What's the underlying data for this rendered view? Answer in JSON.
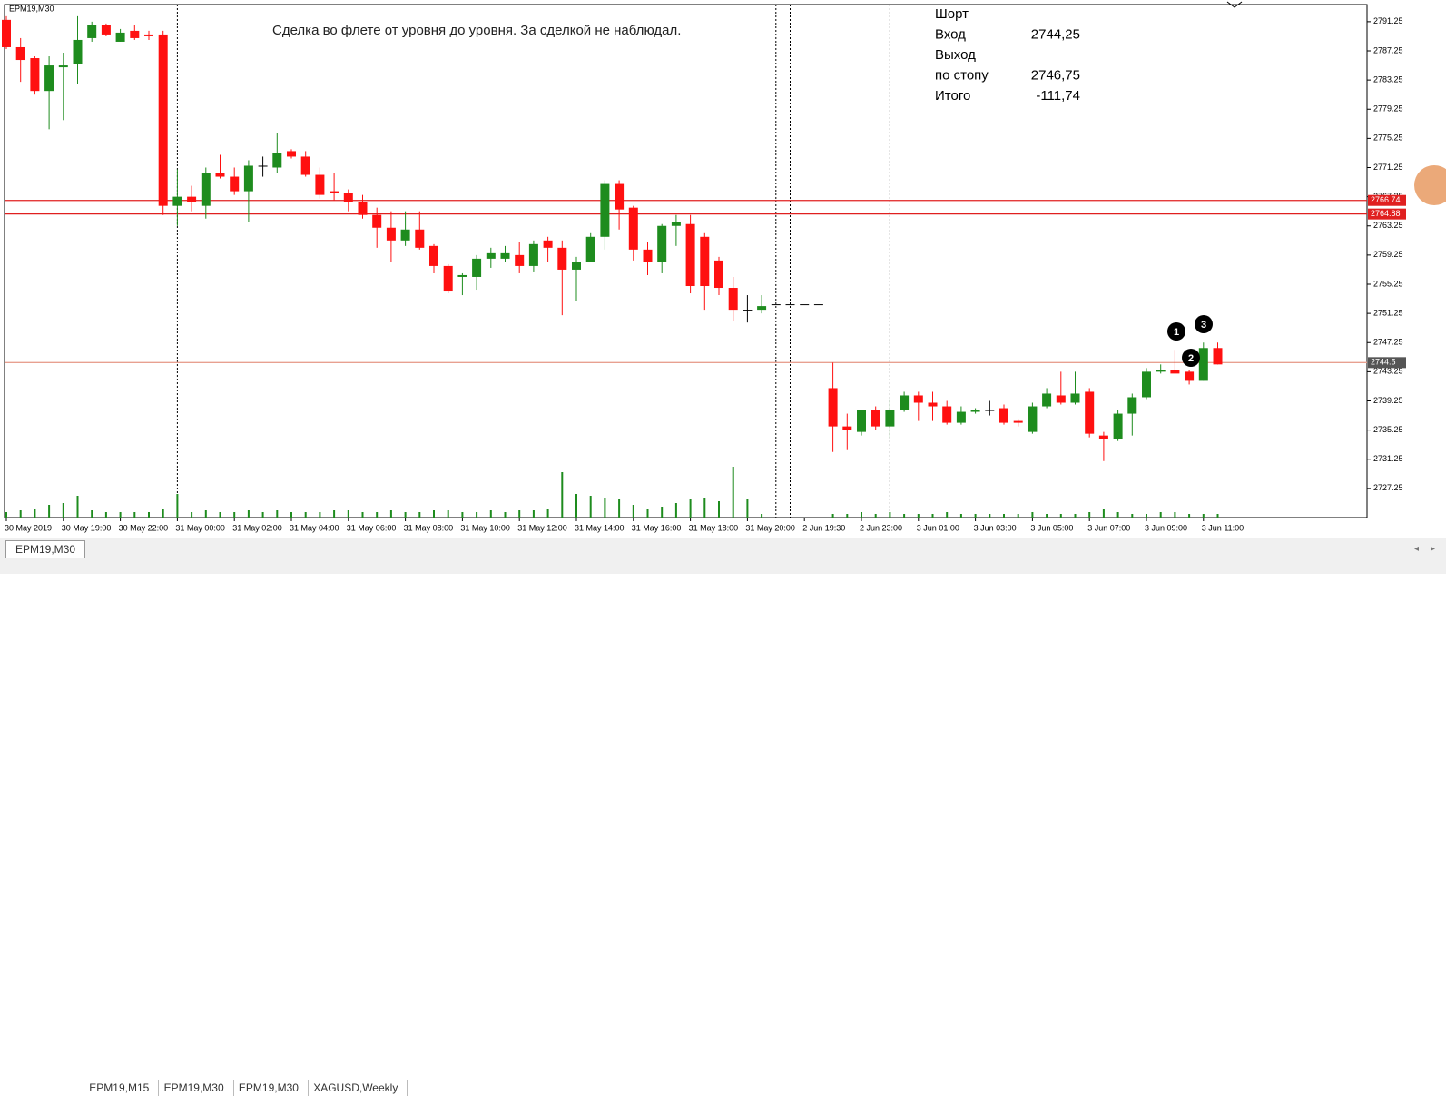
{
  "symbol_label": "EPM19,M30",
  "chart_data": {
    "type": "candlestick",
    "categories": [
      "30 May 2019",
      null,
      null,
      null,
      "30 May 19:00",
      null,
      null,
      null,
      "30 May 22:00",
      null,
      null,
      null,
      "31 May 00:00",
      null,
      null,
      null,
      "31 May 02:00",
      null,
      null,
      null,
      "31 May 04:00",
      null,
      null,
      null,
      "31 May 06:00",
      null,
      null,
      null,
      "31 May 08:00",
      null,
      null,
      null,
      "31 May 10:00",
      null,
      null,
      null,
      "31 May 12:00",
      null,
      null,
      null,
      "31 May 14:00",
      null,
      null,
      null,
      "31 May 16:00",
      null,
      null,
      null,
      "31 May 18:00",
      null,
      null,
      null,
      "31 May 20:00",
      null,
      null,
      null,
      "2 Jun 19:30",
      null,
      null,
      null,
      "2 Jun 23:00",
      null,
      null,
      null,
      "3 Jun 01:00",
      null,
      null,
      null,
      "3 Jun 03:00",
      null,
      null,
      null,
      "3 Jun 05:00",
      null,
      null,
      null,
      "3 Jun 07:00",
      null,
      null,
      null,
      "3 Jun 09:00",
      null,
      null,
      null,
      "3 Jun 11:00",
      null
    ],
    "open": [
      2791.5,
      2787.75,
      2786.25,
      2781.75,
      2785,
      2785.5,
      2789,
      2790.75,
      2788.5,
      2790,
      2789.5,
      2789.5,
      2766,
      2767.25,
      2766,
      2770.5,
      2770,
      2768,
      2771.5,
      2771.25,
      2773.5,
      2772.75,
      2770.25,
      2768,
      2767.75,
      2766.5,
      2764.75,
      2763,
      2761.25,
      2762.75,
      2760.5,
      2757.75,
      2756.25,
      2756.25,
      2758.75,
      2758.75,
      2759.25,
      2757.75,
      2761.25,
      2760.25,
      2757.25,
      2758.25,
      2761.75,
      2769,
      2765.75,
      2760,
      2758.25,
      2763.25,
      2763.5,
      2761.75,
      2758.5,
      2754.75,
      2751.75,
      2751.75,
      2752.5,
      2752.5,
      2752.5,
      2752.5,
      2741,
      2735.75,
      2735,
      2738,
      2735.75,
      2738,
      2740,
      2739,
      2738.5,
      2736.25,
      2737.75,
      2738,
      2738.25,
      2736.5,
      2735,
      2738.5,
      2740,
      2739,
      2740.5,
      2734.5,
      2734,
      2737.5,
      2739.75,
      2743.25,
      2743.5,
      2743.25,
      2742,
      2746.5
    ],
    "high": [
      2792,
      2789,
      2786.5,
      2786.5,
      2787,
      2792,
      2791.25,
      2791,
      2790.25,
      2790.75,
      2790,
      2790,
      2771,
      2768.75,
      2771.25,
      2773,
      2771.25,
      2772.25,
      2772.75,
      2776,
      2773.75,
      2773.5,
      2771.25,
      2770.5,
      2768.25,
      2767.5,
      2765.75,
      2765.25,
      2765.25,
      2765.25,
      2760.75,
      2758,
      2756.75,
      2759.25,
      2760.25,
      2760.5,
      2761,
      2761.25,
      2761.75,
      2761.25,
      2759,
      2762.25,
      2769.5,
      2769.5,
      2766,
      2761,
      2763.5,
      2764.75,
      2764.75,
      2762.25,
      2759,
      2756.25,
      2753.75,
      2753.75,
      2752.5,
      2752.5,
      2752.5,
      2752.5,
      2744.5,
      2737.5,
      2738,
      2738.5,
      2739.5,
      2740.5,
      2740.5,
      2740.5,
      2739.25,
      2738.5,
      2738.25,
      2739.25,
      2738.75,
      2736.75,
      2739,
      2741,
      2743.25,
      2743.25,
      2741,
      2735,
      2738,
      2740.25,
      2743.75,
      2744.25,
      2746.25,
      2743.5,
      2747.25,
      2747.25
    ],
    "low": [
      2787.5,
      2783,
      2781.25,
      2776.5,
      2777.75,
      2782.75,
      2788.5,
      2789.25,
      2788.5,
      2788.75,
      2788.75,
      2764.75,
      2763.25,
      2765.25,
      2764.25,
      2769.75,
      2767.5,
      2763.75,
      2770,
      2770.5,
      2772.5,
      2770,
      2767,
      2766.75,
      2765.25,
      2764.25,
      2760.25,
      2758.25,
      2760.5,
      2760,
      2756.75,
      2754,
      2753.75,
      2754.5,
      2757.5,
      2758.25,
      2756.75,
      2757,
      2758.25,
      2751,
      2753,
      2758.25,
      2760,
      2762.75,
      2758.5,
      2756.5,
      2756.75,
      2760.5,
      2754,
      2751.75,
      2753.75,
      2750.25,
      2750,
      2751.25,
      2752.5,
      2752.5,
      2752.5,
      2752.5,
      2732.25,
      2732.5,
      2734.5,
      2735.25,
      2734.25,
      2737.75,
      2736.5,
      2736.5,
      2736,
      2736,
      2737.5,
      2737.25,
      2736,
      2735.75,
      2734.75,
      2738.25,
      2738.75,
      2738.75,
      2734.25,
      2731,
      2733.75,
      2734.5,
      2739.5,
      2743,
      2743,
      2741.5,
      2742,
      2744.25
    ],
    "close": [
      2787.75,
      2786,
      2781.75,
      2785.25,
      2785.25,
      2788.75,
      2790.75,
      2789.5,
      2789.75,
      2789,
      2789.25,
      2766,
      2767.25,
      2766.5,
      2770.5,
      2770,
      2768,
      2771.5,
      2771.5,
      2773.25,
      2772.75,
      2770.25,
      2767.5,
      2767.75,
      2766.5,
      2764.75,
      2763,
      2761.25,
      2762.75,
      2760.25,
      2757.75,
      2754.25,
      2756.5,
      2758.75,
      2759.5,
      2759.5,
      2757.75,
      2760.75,
      2760.25,
      2757.25,
      2758.25,
      2761.75,
      2769,
      2765.5,
      2760,
      2758.25,
      2763.25,
      2763.75,
      2755,
      2755,
      2754.75,
      2751.75,
      2751.75,
      2752.25,
      2752.5,
      2752.5,
      2752.5,
      2752.5,
      2735.75,
      2735.25,
      2738,
      2735.75,
      2738,
      2740,
      2739,
      2738.5,
      2736.25,
      2737.75,
      2738,
      2738,
      2736.25,
      2736.25,
      2738.5,
      2740.25,
      2739,
      2740.25,
      2734.75,
      2734,
      2737.5,
      2739.75,
      2743.25,
      2743.5,
      2743,
      2742,
      2746.5,
      2744.25
    ],
    "volumes": [
      6,
      8,
      10,
      14,
      16,
      24,
      8,
      6,
      6,
      6,
      6,
      10,
      26,
      6,
      8,
      6,
      6,
      8,
      6,
      8,
      6,
      6,
      6,
      8,
      8,
      6,
      6,
      8,
      6,
      6,
      8,
      8,
      6,
      6,
      8,
      6,
      8,
      8,
      10,
      50,
      26,
      24,
      22,
      20,
      14,
      10,
      12,
      16,
      20,
      22,
      18,
      56,
      20,
      4,
      0,
      0,
      0,
      0,
      4,
      4,
      6,
      4,
      6,
      4,
      4,
      4,
      6,
      4,
      4,
      4,
      4,
      4,
      6,
      4,
      4,
      4,
      6,
      10,
      6,
      4,
      4,
      6,
      6,
      4,
      4,
      4
    ],
    "up_color": "#1e8c1e",
    "down_color": "#ff1010",
    "doji_color": "#000000",
    "ylim": [
      2723.25,
      2793.6
    ],
    "yticks": [
      2791.25,
      2787.25,
      2783.25,
      2779.25,
      2775.25,
      2771.25,
      2767.25,
      2763.25,
      2759.25,
      2755.25,
      2751.25,
      2747.25,
      2743.25,
      2739.25,
      2735.25,
      2731.25,
      2727.25
    ],
    "hlines": [
      {
        "value": 2766.74,
        "color": "#e02020"
      },
      {
        "value": 2764.88,
        "color": "#e02020"
      },
      {
        "value": 2744.5,
        "color": "#e8a090"
      }
    ],
    "annotation": "Сделка во флете от уровня до уровня. За сделкой не наблюдал.",
    "markers": [
      "1",
      "2",
      "3"
    ]
  },
  "trade_info": {
    "rows": [
      [
        "Шорт",
        null
      ],
      [
        "Вход",
        "2744,25"
      ],
      [
        "Выход",
        null
      ],
      [
        "по стопу",
        "2746,75"
      ],
      [
        "Итого",
        "-111,74"
      ]
    ]
  },
  "tabs": [
    "EPM19,M30",
    "EPM19,M15",
    "EPM19,M30",
    "EPM19,M30",
    "XAGUSD,Weekly"
  ]
}
